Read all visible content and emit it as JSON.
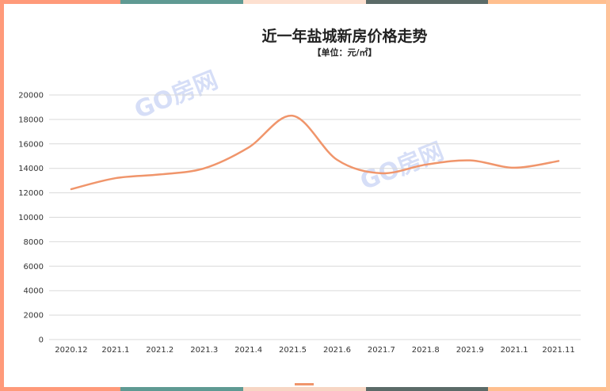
{
  "chart_data": {
    "type": "line",
    "title": "近一年盐城新房价格走势",
    "subtitle": "【单位：元/㎡】",
    "xlabel": "",
    "ylabel": "",
    "categories": [
      "2020.12",
      "2021.1",
      "2021.2",
      "2021.3",
      "2021.4",
      "2021.5",
      "2021.6",
      "2021.7",
      "2021.8",
      "2021.9",
      "2021.1",
      "2021.11"
    ],
    "series": [
      {
        "values": [
          12300,
          13200,
          13500,
          14000,
          15700,
          18300,
          14700,
          13600,
          14300,
          14650,
          14050,
          14600
        ]
      }
    ],
    "ylim": [
      0,
      20000
    ],
    "yticks": [
      0,
      2000,
      4000,
      6000,
      8000,
      10000,
      12000,
      14000,
      16000,
      18000,
      20000
    ],
    "grid": true,
    "legend": "none"
  },
  "watermark": "GO房网",
  "colors": {
    "line": "#f0956b",
    "grid": "#d9d9d9",
    "border_left": "#ff9a7a",
    "border_right": "#ffc29a",
    "top_bar": [
      "#ff9a7a",
      "#5f9a93",
      "#fde0d0",
      "#5b6b68",
      "#ffbf8f"
    ],
    "bottom_bar": [
      "#ff9a7a",
      "#5f9a93",
      "#f7d6c4",
      "#5b6b68",
      "#ffbf8f"
    ],
    "legend_mark": "#f0956b"
  }
}
